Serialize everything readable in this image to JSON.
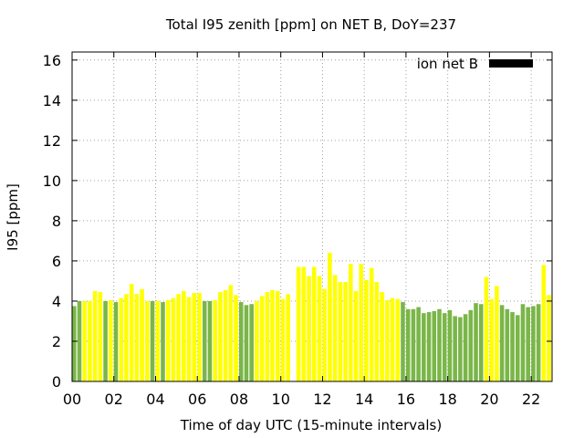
{
  "chart_data": {
    "type": "bar",
    "title": "Total I95 zenith [ppm] on NET B, DoY=237",
    "xlabel": "Time of day UTC (15-minute intervals)",
    "ylabel": "I95 [ppm]",
    "legend": {
      "label": "ion net B",
      "placement": "top-right",
      "swatch_color": "#000000"
    },
    "xlim": [
      0,
      23
    ],
    "ylim": [
      0,
      16.4
    ],
    "x_ticks": [
      0,
      2,
      4,
      6,
      8,
      10,
      12,
      14,
      16,
      18,
      20,
      22
    ],
    "x_tick_labels": [
      "00",
      "02",
      "04",
      "06",
      "08",
      "10",
      "12",
      "14",
      "16",
      "18",
      "20",
      "22"
    ],
    "y_ticks": [
      0,
      2,
      4,
      6,
      8,
      10,
      12,
      14,
      16
    ],
    "y_tick_labels": [
      "0",
      "2",
      "4",
      "6",
      "8",
      "10",
      "12",
      "14",
      "16"
    ],
    "grid": true,
    "bar_interval_hours": 0.25,
    "colors": {
      "green": "#7ab648",
      "yellow": "#ffff00",
      "axis": "#000000",
      "grid": "#a0a0a0"
    },
    "bars": [
      {
        "x": 0.0,
        "y": 3.75,
        "color": "green"
      },
      {
        "x": 0.25,
        "y": 4.0,
        "color": "green"
      },
      {
        "x": 0.5,
        "y": 4.0,
        "color": "yellow"
      },
      {
        "x": 0.75,
        "y": 4.0,
        "color": "yellow"
      },
      {
        "x": 1.0,
        "y": 4.5,
        "color": "yellow"
      },
      {
        "x": 1.25,
        "y": 4.45,
        "color": "yellow"
      },
      {
        "x": 1.5,
        "y": 4.0,
        "color": "green"
      },
      {
        "x": 1.75,
        "y": 4.05,
        "color": "yellow"
      },
      {
        "x": 2.0,
        "y": 3.95,
        "color": "green"
      },
      {
        "x": 2.25,
        "y": 4.15,
        "color": "yellow"
      },
      {
        "x": 2.5,
        "y": 4.35,
        "color": "yellow"
      },
      {
        "x": 2.75,
        "y": 4.85,
        "color": "yellow"
      },
      {
        "x": 3.0,
        "y": 4.35,
        "color": "yellow"
      },
      {
        "x": 3.25,
        "y": 4.6,
        "color": "yellow"
      },
      {
        "x": 3.5,
        "y": 4.0,
        "color": "yellow"
      },
      {
        "x": 3.75,
        "y": 4.0,
        "color": "green"
      },
      {
        "x": 4.0,
        "y": 4.0,
        "color": "yellow"
      },
      {
        "x": 4.25,
        "y": 3.95,
        "color": "green"
      },
      {
        "x": 4.5,
        "y": 4.05,
        "color": "yellow"
      },
      {
        "x": 4.75,
        "y": 4.15,
        "color": "yellow"
      },
      {
        "x": 5.0,
        "y": 4.35,
        "color": "yellow"
      },
      {
        "x": 5.25,
        "y": 4.5,
        "color": "yellow"
      },
      {
        "x": 5.5,
        "y": 4.2,
        "color": "yellow"
      },
      {
        "x": 5.75,
        "y": 4.4,
        "color": "yellow"
      },
      {
        "x": 6.0,
        "y": 4.4,
        "color": "yellow"
      },
      {
        "x": 6.25,
        "y": 4.0,
        "color": "green"
      },
      {
        "x": 6.5,
        "y": 4.0,
        "color": "green"
      },
      {
        "x": 6.75,
        "y": 4.05,
        "color": "yellow"
      },
      {
        "x": 7.0,
        "y": 4.45,
        "color": "yellow"
      },
      {
        "x": 7.25,
        "y": 4.55,
        "color": "yellow"
      },
      {
        "x": 7.5,
        "y": 4.8,
        "color": "yellow"
      },
      {
        "x": 7.75,
        "y": 4.3,
        "color": "yellow"
      },
      {
        "x": 8.0,
        "y": 3.95,
        "color": "green"
      },
      {
        "x": 8.25,
        "y": 3.8,
        "color": "green"
      },
      {
        "x": 8.5,
        "y": 3.85,
        "color": "green"
      },
      {
        "x": 8.75,
        "y": 4.0,
        "color": "yellow"
      },
      {
        "x": 9.0,
        "y": 4.25,
        "color": "yellow"
      },
      {
        "x": 9.25,
        "y": 4.45,
        "color": "yellow"
      },
      {
        "x": 9.5,
        "y": 4.55,
        "color": "yellow"
      },
      {
        "x": 9.75,
        "y": 4.5,
        "color": "yellow"
      },
      {
        "x": 10.0,
        "y": 4.1,
        "color": "yellow"
      },
      {
        "x": 10.25,
        "y": 4.35,
        "color": "yellow"
      },
      {
        "x": 10.75,
        "y": 5.7,
        "color": "yellow"
      },
      {
        "x": 11.0,
        "y": 5.7,
        "color": "yellow"
      },
      {
        "x": 11.25,
        "y": 5.25,
        "color": "yellow"
      },
      {
        "x": 11.5,
        "y": 5.7,
        "color": "yellow"
      },
      {
        "x": 11.75,
        "y": 5.25,
        "color": "yellow"
      },
      {
        "x": 12.0,
        "y": 4.6,
        "color": "yellow"
      },
      {
        "x": 12.25,
        "y": 6.4,
        "color": "yellow"
      },
      {
        "x": 12.5,
        "y": 5.3,
        "color": "yellow"
      },
      {
        "x": 12.75,
        "y": 4.95,
        "color": "yellow"
      },
      {
        "x": 13.0,
        "y": 4.95,
        "color": "yellow"
      },
      {
        "x": 13.25,
        "y": 5.85,
        "color": "yellow"
      },
      {
        "x": 13.5,
        "y": 4.5,
        "color": "yellow"
      },
      {
        "x": 13.75,
        "y": 5.85,
        "color": "yellow"
      },
      {
        "x": 14.0,
        "y": 5.05,
        "color": "yellow"
      },
      {
        "x": 14.25,
        "y": 5.65,
        "color": "yellow"
      },
      {
        "x": 14.5,
        "y": 4.95,
        "color": "yellow"
      },
      {
        "x": 14.75,
        "y": 4.45,
        "color": "yellow"
      },
      {
        "x": 15.0,
        "y": 4.05,
        "color": "yellow"
      },
      {
        "x": 15.25,
        "y": 4.15,
        "color": "yellow"
      },
      {
        "x": 15.5,
        "y": 4.1,
        "color": "yellow"
      },
      {
        "x": 15.75,
        "y": 3.95,
        "color": "green"
      },
      {
        "x": 16.0,
        "y": 3.6,
        "color": "green"
      },
      {
        "x": 16.25,
        "y": 3.6,
        "color": "green"
      },
      {
        "x": 16.5,
        "y": 3.7,
        "color": "green"
      },
      {
        "x": 16.75,
        "y": 3.4,
        "color": "green"
      },
      {
        "x": 17.0,
        "y": 3.45,
        "color": "green"
      },
      {
        "x": 17.25,
        "y": 3.5,
        "color": "green"
      },
      {
        "x": 17.5,
        "y": 3.6,
        "color": "green"
      },
      {
        "x": 17.75,
        "y": 3.4,
        "color": "green"
      },
      {
        "x": 18.0,
        "y": 3.55,
        "color": "green"
      },
      {
        "x": 18.25,
        "y": 3.25,
        "color": "green"
      },
      {
        "x": 18.5,
        "y": 3.2,
        "color": "green"
      },
      {
        "x": 18.75,
        "y": 3.35,
        "color": "green"
      },
      {
        "x": 19.0,
        "y": 3.55,
        "color": "green"
      },
      {
        "x": 19.25,
        "y": 3.9,
        "color": "green"
      },
      {
        "x": 19.5,
        "y": 3.85,
        "color": "green"
      },
      {
        "x": 19.75,
        "y": 5.2,
        "color": "yellow"
      },
      {
        "x": 20.0,
        "y": 4.1,
        "color": "yellow"
      },
      {
        "x": 20.25,
        "y": 4.75,
        "color": "yellow"
      },
      {
        "x": 20.5,
        "y": 3.8,
        "color": "green"
      },
      {
        "x": 20.75,
        "y": 3.6,
        "color": "green"
      },
      {
        "x": 21.0,
        "y": 3.45,
        "color": "green"
      },
      {
        "x": 21.25,
        "y": 3.3,
        "color": "green"
      },
      {
        "x": 21.5,
        "y": 3.85,
        "color": "green"
      },
      {
        "x": 21.75,
        "y": 3.7,
        "color": "green"
      },
      {
        "x": 22.0,
        "y": 3.75,
        "color": "green"
      },
      {
        "x": 22.25,
        "y": 3.85,
        "color": "green"
      },
      {
        "x": 22.5,
        "y": 5.8,
        "color": "yellow"
      },
      {
        "x": 22.75,
        "y": 4.3,
        "color": "yellow"
      }
    ]
  }
}
